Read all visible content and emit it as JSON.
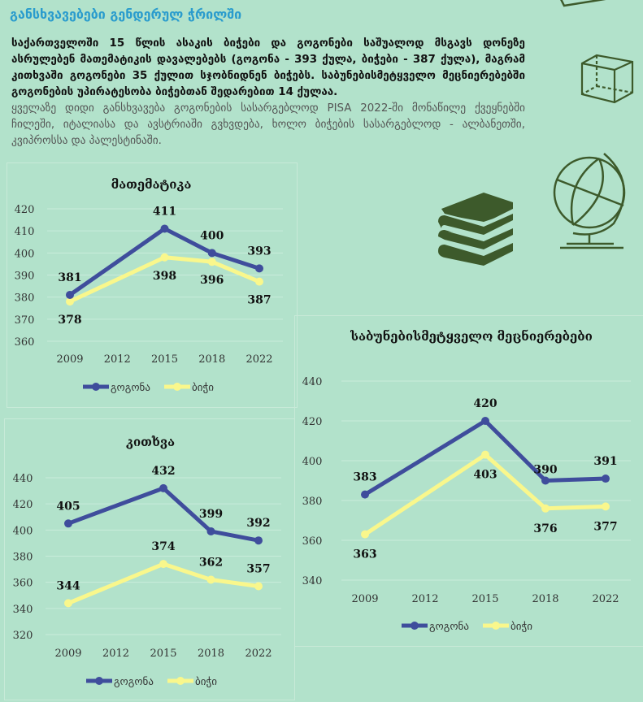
{
  "header": {
    "title": "განსხვავებები გენდერულ ჭრილში",
    "summary_bold": "საქართველოში 15 წლის ასაკის ბიჭები და გოგონები საშუალოდ მსგავს დონეზე ასრულებენ მათემატიკის დავალებებს (გოგონა - 393 ქულა, ბიჭები - 387 ქულა), მაგრამ კითხვაში გოგონები 35 ქულით სჯობნიდნენ ბიჭებს. საბუნებისმეტყველო მეცნიერებებში გოგონების უპირატესობა ბიჭებთან შედარებით 14 ქულაა.",
    "summary_light": "ყველაზე დიდი განსხვავება გოგონების სასარგებლოდ PISA 2022-ში მონაწილე ქვეყნებში ჩილეში, იტალიასა და ავსტრიაში გვხვდება, ხოლო ბიჭების სასარგებლოდ - ალბანეთში, კვიპროსსა და პალესტინაში."
  },
  "icons": [
    "ruler-icon",
    "cube-icon",
    "books-icon",
    "globe-icon"
  ],
  "colors": {
    "girl": "#3f4d9c",
    "boy": "#f9f78c",
    "accent": "#2a9ccd",
    "icon": "#3d5a2b"
  },
  "chart_data": [
    {
      "type": "line",
      "title": "მათემატიკა",
      "categories": [
        "2009",
        "2012",
        "2015",
        "2018",
        "2022"
      ],
      "ylim": [
        360,
        420
      ],
      "yticks": [
        360,
        370,
        380,
        390,
        400,
        410,
        420
      ],
      "grid": true,
      "legend": "bottom",
      "series": [
        {
          "name": "გოგონა",
          "values": [
            381,
            null,
            411,
            400,
            393
          ]
        },
        {
          "name": "ბიჭი",
          "values": [
            378,
            null,
            398,
            396,
            387
          ]
        }
      ]
    },
    {
      "type": "line",
      "title": "კითხვა",
      "categories": [
        "2009",
        "2012",
        "2015",
        "2018",
        "2022"
      ],
      "ylim": [
        320,
        440
      ],
      "yticks": [
        320,
        340,
        360,
        380,
        400,
        420,
        440
      ],
      "grid": true,
      "legend": "bottom",
      "series": [
        {
          "name": "გოგონა",
          "values": [
            405,
            null,
            432,
            399,
            392
          ]
        },
        {
          "name": "ბიჭი",
          "values": [
            344,
            null,
            374,
            362,
            357
          ]
        }
      ]
    },
    {
      "type": "line",
      "title": "საბუნებისმეტყველო მეცნიერებები",
      "categories": [
        "2009",
        "2012",
        "2015",
        "2018",
        "2022"
      ],
      "ylim": [
        340,
        440
      ],
      "yticks": [
        340,
        360,
        380,
        400,
        420,
        440
      ],
      "grid": true,
      "legend": "bottom",
      "series": [
        {
          "name": "გოგონა",
          "values": [
            383,
            null,
            420,
            390,
            391
          ]
        },
        {
          "name": "ბიჭი",
          "values": [
            363,
            null,
            403,
            376,
            377
          ]
        }
      ]
    }
  ]
}
